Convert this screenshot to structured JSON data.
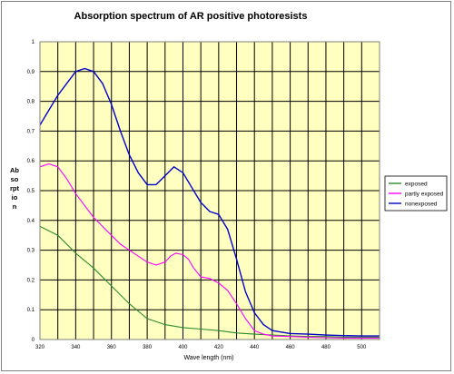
{
  "chart_data": {
    "type": "line",
    "title": "Absorption spectrum of AR positive photoresists",
    "xlabel": "Wave length (nm)",
    "ylabel_lines": [
      "Ab",
      "so",
      "rpt",
      "io",
      "n"
    ],
    "xlim": [
      320,
      510
    ],
    "ylim": [
      0,
      1
    ],
    "x_ticks": [
      320,
      340,
      360,
      380,
      400,
      420,
      440,
      460,
      480,
      500
    ],
    "y_ticks": [
      "0",
      "0.1",
      "0.2",
      "0.3",
      "0.4",
      "0.5",
      "0.6",
      "0.7",
      "0.8",
      "0.9",
      "1"
    ],
    "grid": true,
    "plot_background": "#ffffc0",
    "legend_position": "right",
    "series": [
      {
        "name": "exposed",
        "color": "#2e8b2e",
        "x": [
          320,
          330,
          340,
          350,
          360,
          370,
          380,
          390,
          400,
          410,
          420,
          430,
          440,
          450,
          460,
          470,
          480,
          490,
          500,
          510
        ],
        "values": [
          0.38,
          0.35,
          0.29,
          0.24,
          0.18,
          0.12,
          0.07,
          0.05,
          0.04,
          0.035,
          0.03,
          0.022,
          0.018,
          0.015,
          0.012,
          0.01,
          0.01,
          0.008,
          0.008,
          0.008
        ]
      },
      {
        "name": "partly exposed",
        "color": "#ff00ff",
        "x": [
          320,
          325,
          330,
          335,
          340,
          345,
          350,
          355,
          360,
          365,
          370,
          375,
          380,
          385,
          390,
          393,
          396,
          400,
          403,
          406,
          410,
          415,
          420,
          425,
          430,
          435,
          440,
          445,
          450,
          460,
          470,
          480,
          490,
          500,
          510
        ],
        "values": [
          0.58,
          0.59,
          0.58,
          0.54,
          0.49,
          0.45,
          0.41,
          0.38,
          0.35,
          0.32,
          0.3,
          0.28,
          0.26,
          0.25,
          0.26,
          0.28,
          0.29,
          0.285,
          0.27,
          0.24,
          0.21,
          0.205,
          0.19,
          0.165,
          0.12,
          0.07,
          0.03,
          0.018,
          0.012,
          0.01,
          0.008,
          0.006,
          0.005,
          0.005,
          0.005
        ]
      },
      {
        "name": "nonexposed",
        "color": "#0000cc",
        "x": [
          320,
          325,
          330,
          335,
          340,
          345,
          350,
          355,
          360,
          365,
          370,
          375,
          380,
          385,
          390,
          395,
          400,
          405,
          410,
          415,
          420,
          425,
          430,
          435,
          440,
          445,
          450,
          455,
          460,
          470,
          480,
          490,
          500,
          510
        ],
        "values": [
          0.72,
          0.77,
          0.82,
          0.86,
          0.9,
          0.91,
          0.9,
          0.86,
          0.79,
          0.7,
          0.62,
          0.56,
          0.52,
          0.52,
          0.55,
          0.58,
          0.56,
          0.51,
          0.46,
          0.43,
          0.42,
          0.37,
          0.27,
          0.16,
          0.09,
          0.05,
          0.03,
          0.025,
          0.02,
          0.018,
          0.015,
          0.013,
          0.012,
          0.012
        ]
      }
    ]
  }
}
